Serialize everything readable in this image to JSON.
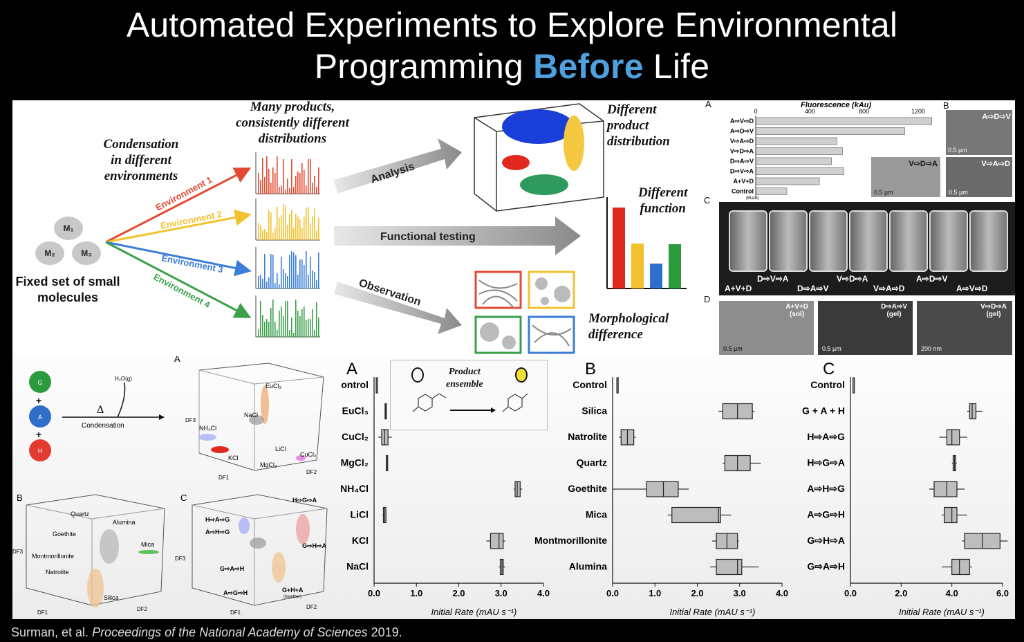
{
  "title": {
    "line1": "Automated Experiments to Explore Environmental",
    "line2_pre": "Programming ",
    "line2_hl": "Before",
    "line2_post": " Life"
  },
  "top": {
    "condensation": [
      "Condensation",
      "in different",
      "environments"
    ],
    "many_products": [
      "Many products,",
      "consistently different",
      "distributions"
    ],
    "molecules": [
      "M₁",
      "M₂",
      "M₃"
    ],
    "fixed_set": [
      "Fixed set of small",
      "molecules"
    ],
    "environments": [
      "Environment 1",
      "Environment 2",
      "Environment 3",
      "Environment 4"
    ],
    "env_colors": [
      "#e24a33",
      "#f2c12e",
      "#3b7dd8",
      "#3aa04a"
    ],
    "arrows": [
      "Analysis",
      "Functional testing",
      "Observation"
    ],
    "outcomes": {
      "distribution": [
        "Different",
        "product",
        "distribution"
      ],
      "function": [
        "Different",
        "function"
      ],
      "morph": [
        "Morphological",
        "difference"
      ]
    },
    "fluor": {
      "panel": "A",
      "title": "Fluorescence (kAu)",
      "ticks": [
        "0",
        "400",
        "800",
        "1200"
      ],
      "rows": [
        "A⇨V⇨D",
        "A⇨D⇨V",
        "V⇨A⇨D",
        "V⇨D⇨A",
        "D⇨A⇨V",
        "D⇨V⇨A",
        "A+V+D",
        "Control"
      ],
      "row_sub": "(Blank)",
      "values": [
        1300,
        1100,
        600,
        640,
        560,
        650,
        470,
        230
      ]
    },
    "panel_B": "B",
    "panel_C": "C",
    "panel_D": "D",
    "sem_labels": [
      "A⇨D⇨V",
      "V⇨D⇨A",
      "V⇨A⇨D"
    ],
    "scale_05": "0.5 µm",
    "scale_200": "200 nm",
    "vial_top": [
      "D⇨V⇨A",
      "V⇨D⇨A",
      "A⇨D⇨V"
    ],
    "vial_bottom": [
      "A+V+D",
      "D⇨A⇨V",
      "V⇨A⇨D",
      "A⇨V⇨D"
    ],
    "d_labels": [
      [
        "A+V+D",
        "(sol)"
      ],
      [
        "D⇨A⇨V",
        "(gel)"
      ],
      [
        "V⇨D⇨A",
        "(gel)"
      ]
    ]
  },
  "bottom": {
    "ghs": [
      "G",
      "A",
      "H"
    ],
    "ghs_colors": [
      "#2e9a3e",
      "#2f6fc8",
      "#e23b2f"
    ],
    "plus": "+",
    "h2o": "H₂O(g)",
    "delta": "Δ",
    "condensation": "Condensation",
    "pA_labels": [
      "A",
      "EuCl₃",
      "NaCl",
      "NH₄Cl",
      "KCl",
      "LiCl",
      "MgCl₂",
      "CuCl₂",
      "DF1",
      "DF2",
      "DF3"
    ],
    "pB_labels": [
      "B",
      "Quartz",
      "Alumina",
      "Goethite",
      "Mica",
      "Montmorillonite",
      "Natrolite",
      "Silica",
      "DF1",
      "DF2",
      "DF3"
    ],
    "pC_labels": [
      "C",
      "H⇨G⇨A",
      "H⇨A⇨G",
      "A⇨H⇨G",
      "G⇨H⇨A",
      "G⇨A⇨H",
      "A⇨G⇨H",
      "G+H+A",
      "(together)",
      "DF1",
      "DF2",
      "DF3"
    ],
    "product_ensemble": [
      "Product",
      "ensemble"
    ],
    "xaxis_label": "Initial Rate (mAU s⁻¹)"
  },
  "chart_data": [
    {
      "type": "boxplot",
      "title": "A",
      "categories": [
        "ontrol",
        "EuCl₃",
        "CuCl₂",
        "MgCl₂",
        "NH₄Cl",
        "LiCl",
        "KCl",
        "NaCl"
      ],
      "boxes": [
        [
          0.05,
          0.05,
          0.05,
          0.05,
          0.05
        ],
        [
          0.25,
          0.26,
          0.27,
          0.28,
          0.29
        ],
        [
          0.1,
          0.18,
          0.25,
          0.33,
          0.42
        ],
        [
          0.28,
          0.29,
          0.3,
          0.31,
          0.32
        ],
        [
          3.3,
          3.33,
          3.38,
          3.45,
          3.5
        ],
        [
          0.2,
          0.22,
          0.25,
          0.28,
          0.3
        ],
        [
          2.65,
          2.75,
          2.95,
          3.05,
          3.1
        ],
        [
          2.95,
          2.98,
          3.02,
          3.05,
          3.1
        ]
      ],
      "xlim": [
        0,
        4.0
      ],
      "xticks": [
        "0.0",
        "1.0",
        "2.0",
        "3.0",
        "4.0"
      ],
      "xlabel": "Initial Rate (mAU s⁻¹)"
    },
    {
      "type": "boxplot",
      "title": "B",
      "categories": [
        "Control",
        "Silica",
        "Natrolite",
        "Quartz",
        "Goethite",
        "Mica",
        "Montmorillonite",
        "Alumina"
      ],
      "boxes": [
        [
          0.1,
          0.1,
          0.1,
          0.1,
          0.1
        ],
        [
          2.5,
          2.6,
          2.95,
          3.3,
          3.35
        ],
        [
          0.15,
          0.2,
          0.35,
          0.5,
          0.55
        ],
        [
          2.6,
          2.65,
          2.95,
          3.25,
          3.5
        ],
        [
          0.0,
          0.8,
          1.2,
          1.55,
          1.8
        ],
        [
          1.3,
          1.4,
          2.5,
          2.55,
          2.8
        ],
        [
          2.35,
          2.45,
          2.7,
          2.95,
          2.98
        ],
        [
          2.3,
          2.45,
          2.95,
          3.05,
          3.45
        ]
      ],
      "xlim": [
        0,
        4.0
      ],
      "xticks": [
        "0.0",
        "1.0",
        "2.0",
        "3.0",
        "4.0"
      ],
      "xlabel": "Initial Rate (mAU s⁻¹)"
    },
    {
      "type": "boxplot",
      "title": "C",
      "categories": [
        "Control",
        "G + A + H",
        "H⇨A⇨G",
        "H⇨G⇨A",
        "A⇨H⇨G",
        "A⇨G⇨H",
        "G⇨H⇨A",
        "G⇨A⇨H"
      ],
      "boxes": [
        [
          0.1,
          0.1,
          0.1,
          0.1,
          0.1
        ],
        [
          4.6,
          4.7,
          4.8,
          4.95,
          5.2
        ],
        [
          3.5,
          3.8,
          4.0,
          4.3,
          4.6
        ],
        [
          4.0,
          4.05,
          4.1,
          4.15,
          4.2
        ],
        [
          3.1,
          3.3,
          3.8,
          4.2,
          4.5
        ],
        [
          3.6,
          3.7,
          4.0,
          4.2,
          4.6
        ],
        [
          4.4,
          4.5,
          5.2,
          5.9,
          6.2
        ],
        [
          3.6,
          4.0,
          4.3,
          4.7,
          4.8
        ]
      ],
      "xlim": [
        0,
        6.0
      ],
      "xticks": [
        "0.0",
        "2.0",
        "4.0",
        "6.0"
      ],
      "xlabel": "Initial Rate (mAU s⁻¹)"
    }
  ],
  "footer": {
    "authors": "Surman, et al. ",
    "journal": "Proceedings of the National Academy of Sciences",
    "year": " 2019."
  }
}
